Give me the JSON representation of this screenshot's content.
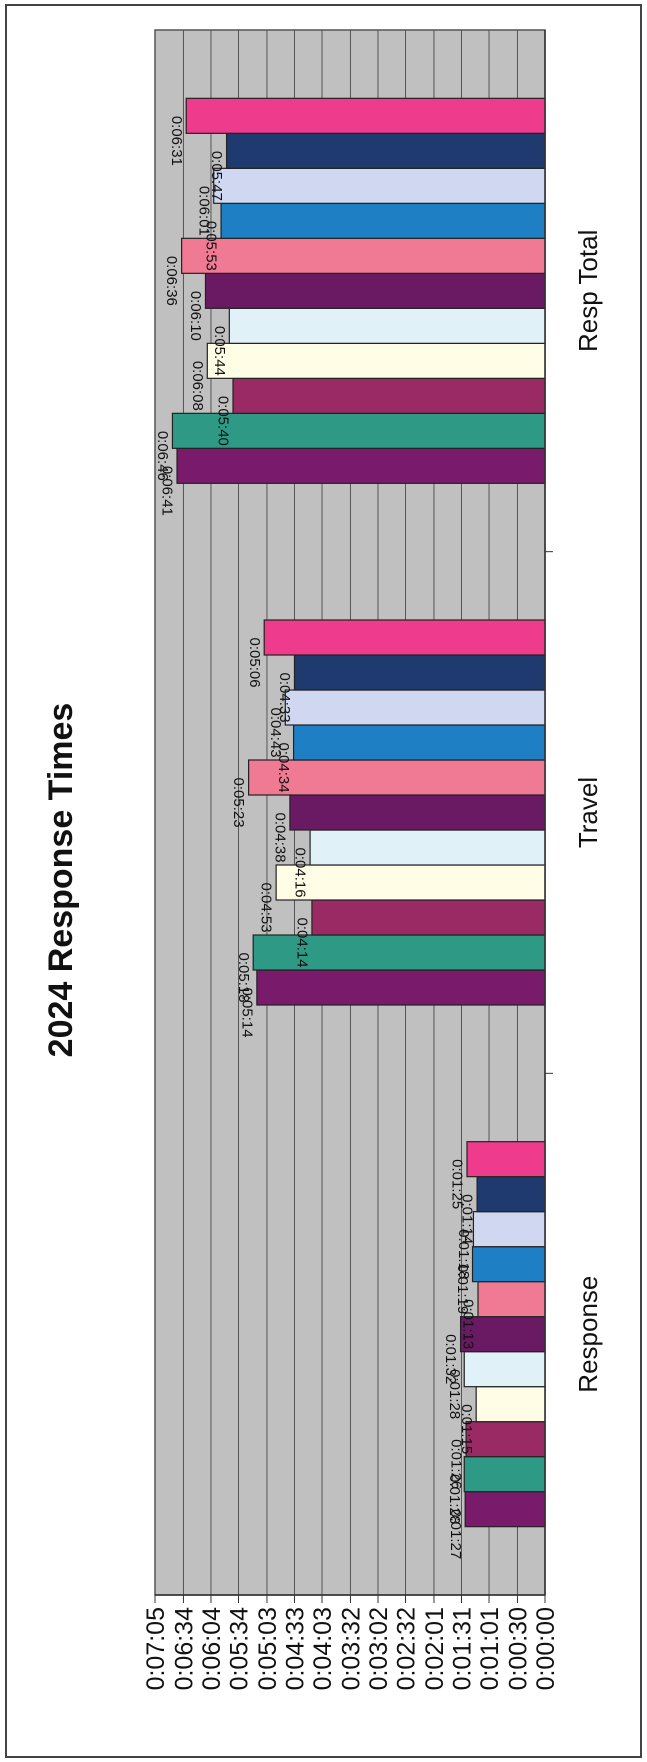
{
  "chart_data": {
    "type": "bar",
    "orientation": "horizontal (page rotated 90 degrees counter-clockwise)",
    "title": "2024 Response Times",
    "categories": [
      "Response",
      "Travel",
      "Resp Total"
    ],
    "value_unit": "seconds",
    "ylim": [
      0,
      425
    ],
    "grid": true,
    "legend": "none",
    "value_ticks": [
      {
        "value": 0,
        "label": "0:00:00"
      },
      {
        "value": 30,
        "label": "0:00:30"
      },
      {
        "value": 61,
        "label": "0:01:01"
      },
      {
        "value": 91,
        "label": "0:01:31"
      },
      {
        "value": 121,
        "label": "0:02:01"
      },
      {
        "value": 152,
        "label": "0:02:32"
      },
      {
        "value": 182,
        "label": "0:03:02"
      },
      {
        "value": 212,
        "label": "0:03:32"
      },
      {
        "value": 243,
        "label": "0:04:03"
      },
      {
        "value": 273,
        "label": "0:04:33"
      },
      {
        "value": 303,
        "label": "0:05:03"
      },
      {
        "value": 334,
        "label": "0:05:34"
      },
      {
        "value": 364,
        "label": "0:06:04"
      },
      {
        "value": 394,
        "label": "0:06:34"
      },
      {
        "value": 425,
        "label": "0:07:05"
      }
    ],
    "series": [
      {
        "color": "#7a1a6a",
        "values": [
          87,
          314,
          401
        ],
        "labels": [
          "0:01:27",
          "0:05:14",
          "0:06:41"
        ]
      },
      {
        "color": "#2e9a86",
        "values": [
          88,
          318,
          406
        ],
        "labels": [
          "0:01:28",
          "0:05:18",
          "0:06:46"
        ]
      },
      {
        "color": "#9a2a63",
        "values": [
          86,
          254,
          340
        ],
        "labels": [
          "0:01:26",
          "0:04:14",
          "0:05:40"
        ]
      },
      {
        "color": "#fffde6",
        "values": [
          75,
          293,
          368
        ],
        "labels": [
          "0:01:15",
          "0:04:53",
          "0:06:08"
        ]
      },
      {
        "color": "#e0f2f8",
        "values": [
          88,
          256,
          344
        ],
        "labels": [
          "0:01:28",
          "0:04:16",
          "0:05:44"
        ]
      },
      {
        "color": "#6a1a62",
        "values": [
          92,
          278,
          370
        ],
        "labels": [
          "0:01:32",
          "0:04:38",
          "0:06:10"
        ]
      },
      {
        "color": "#f07a93",
        "values": [
          73,
          323,
          396
        ],
        "labels": [
          "0:01:13",
          "0:05:23",
          "0:06:36"
        ]
      },
      {
        "color": "#1f7fc4",
        "values": [
          79,
          274,
          353
        ],
        "labels": [
          "0:01:19",
          "0:04:34",
          "0:05:53"
        ]
      },
      {
        "color": "#cfd8f0",
        "values": [
          78,
          283,
          361
        ],
        "labels": [
          "0:01:18",
          "0:04:43",
          "0:06:01"
        ]
      },
      {
        "color": "#1e3a6e",
        "values": [
          74,
          273,
          347
        ],
        "labels": [
          "0:01:14",
          "0:04:33",
          "0:05:47"
        ]
      },
      {
        "color": "#ee3b8c",
        "values": [
          85,
          306,
          391
        ],
        "labels": [
          "0:01:25",
          "0:05:06",
          "0:06:31"
        ]
      }
    ]
  }
}
